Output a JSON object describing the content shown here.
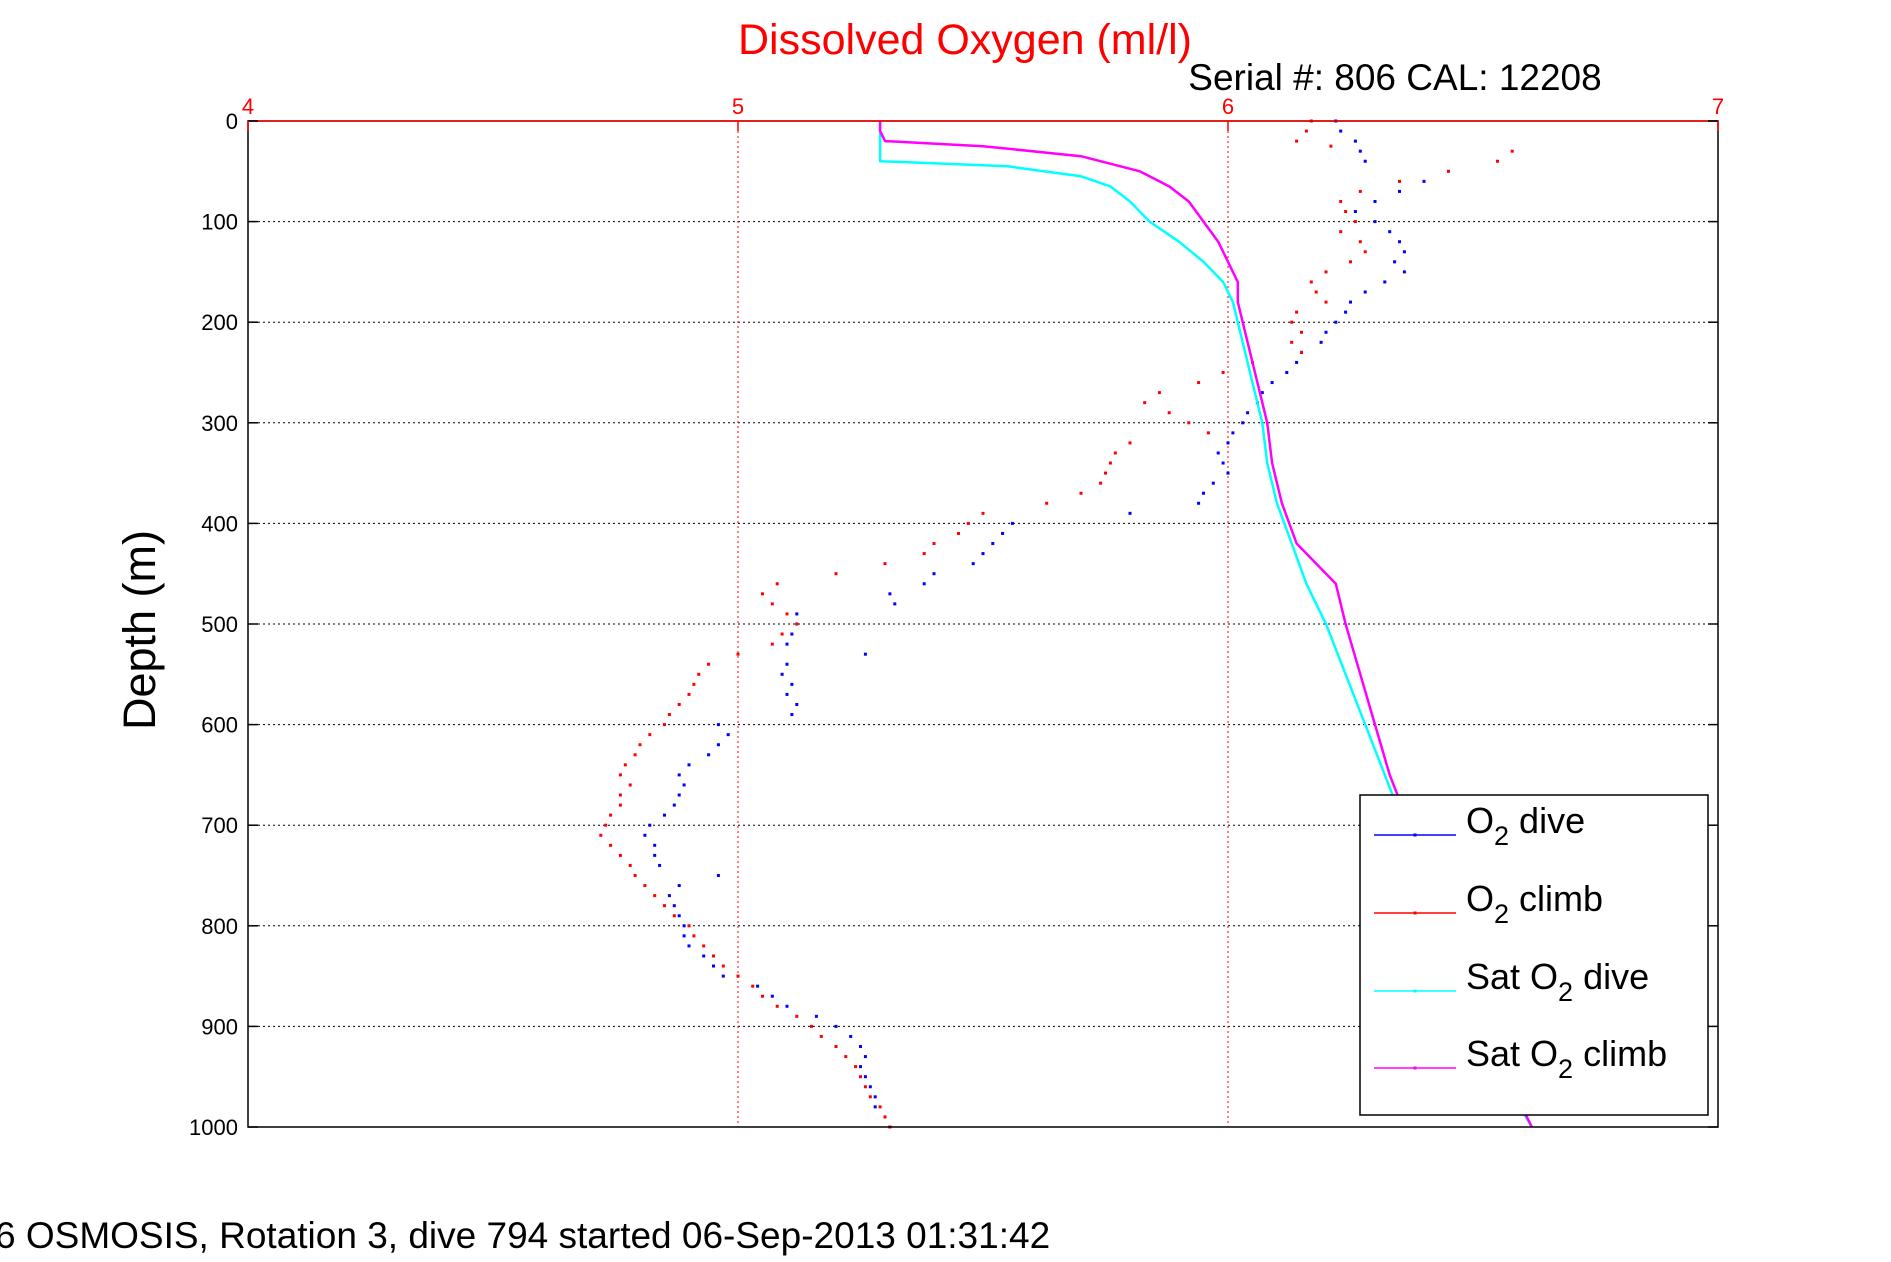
{
  "chart_data": {
    "type": "scatter",
    "title": "Dissolved Oxygen (ml/l)",
    "subtitle": "Serial #: 806  CAL: 12208",
    "footer": "6 OSMOSIS, Rotation 3, dive 794 started 06-Sep-2013 01:31:42",
    "ylabel": "Depth (m)",
    "xlabel": "",
    "xlim": [
      4,
      7
    ],
    "ylim": [
      0,
      1000
    ],
    "y_reversed": true,
    "x_axis_position": "top",
    "xticks": [
      "4",
      "5",
      "6",
      "7"
    ],
    "yticks": [
      "0",
      "100",
      "200",
      "300",
      "400",
      "500",
      "600",
      "700",
      "800",
      "900",
      "1000"
    ],
    "grid": true,
    "legend_position": "bottom-right",
    "colors": {
      "title": "#ff0000",
      "x_ticks": "#ff0000",
      "x_grid": "#ff0000",
      "y_grid": "#000000",
      "frame": "#000000"
    },
    "series": [
      {
        "name": "O2 dive",
        "legend_label": {
          "pre": "O",
          "sub": "2",
          "post": " dive"
        },
        "marker": "dot",
        "color": "#0000ff",
        "points": [
          [
            6.22,
            0
          ],
          [
            6.23,
            10
          ],
          [
            6.26,
            20
          ],
          [
            6.27,
            30
          ],
          [
            6.28,
            40
          ],
          [
            6.4,
            60
          ],
          [
            6.35,
            70
          ],
          [
            6.3,
            80
          ],
          [
            6.26,
            90
          ],
          [
            6.3,
            100
          ],
          [
            6.33,
            110
          ],
          [
            6.35,
            120
          ],
          [
            6.36,
            130
          ],
          [
            6.34,
            140
          ],
          [
            6.36,
            150
          ],
          [
            6.32,
            160
          ],
          [
            6.28,
            170
          ],
          [
            6.25,
            180
          ],
          [
            6.24,
            190
          ],
          [
            6.22,
            200
          ],
          [
            6.2,
            210
          ],
          [
            6.19,
            220
          ],
          [
            6.15,
            230
          ],
          [
            6.14,
            240
          ],
          [
            6.12,
            250
          ],
          [
            6.09,
            260
          ],
          [
            6.07,
            270
          ],
          [
            6.06,
            280
          ],
          [
            6.04,
            290
          ],
          [
            6.03,
            300
          ],
          [
            6.01,
            310
          ],
          [
            6.0,
            320
          ],
          [
            5.98,
            330
          ],
          [
            5.99,
            340
          ],
          [
            6.0,
            350
          ],
          [
            5.97,
            360
          ],
          [
            5.95,
            370
          ],
          [
            5.94,
            380
          ],
          [
            5.8,
            390
          ],
          [
            5.56,
            400
          ],
          [
            5.54,
            410
          ],
          [
            5.52,
            420
          ],
          [
            5.5,
            430
          ],
          [
            5.48,
            440
          ],
          [
            5.4,
            450
          ],
          [
            5.38,
            460
          ],
          [
            5.31,
            470
          ],
          [
            5.32,
            480
          ],
          [
            5.12,
            490
          ],
          [
            5.12,
            500
          ],
          [
            5.11,
            510
          ],
          [
            5.1,
            520
          ],
          [
            5.26,
            530
          ],
          [
            5.1,
            540
          ],
          [
            5.09,
            550
          ],
          [
            5.11,
            560
          ],
          [
            5.1,
            570
          ],
          [
            5.12,
            580
          ],
          [
            5.11,
            590
          ],
          [
            4.96,
            600
          ],
          [
            4.98,
            610
          ],
          [
            4.96,
            620
          ],
          [
            4.94,
            630
          ],
          [
            4.9,
            640
          ],
          [
            4.88,
            650
          ],
          [
            4.89,
            660
          ],
          [
            4.88,
            670
          ],
          [
            4.87,
            680
          ],
          [
            4.85,
            690
          ],
          [
            4.82,
            700
          ],
          [
            4.81,
            710
          ],
          [
            4.83,
            720
          ],
          [
            4.83,
            730
          ],
          [
            4.84,
            740
          ],
          [
            4.96,
            750
          ],
          [
            4.88,
            760
          ],
          [
            4.86,
            770
          ],
          [
            4.87,
            780
          ],
          [
            4.88,
            790
          ],
          [
            4.89,
            800
          ],
          [
            4.89,
            810
          ],
          [
            4.9,
            820
          ],
          [
            4.93,
            830
          ],
          [
            4.95,
            840
          ],
          [
            4.97,
            850
          ],
          [
            5.04,
            860
          ],
          [
            5.07,
            870
          ],
          [
            5.1,
            880
          ],
          [
            5.16,
            890
          ],
          [
            5.2,
            900
          ],
          [
            5.23,
            910
          ],
          [
            5.25,
            920
          ],
          [
            5.26,
            930
          ],
          [
            5.25,
            940
          ],
          [
            5.26,
            950
          ],
          [
            5.27,
            960
          ],
          [
            5.28,
            970
          ],
          [
            5.28,
            980
          ],
          [
            5.3,
            990
          ],
          [
            5.31,
            1000
          ]
        ]
      },
      {
        "name": "O2 climb",
        "legend_label": {
          "pre": "O",
          "sub": "2",
          "post": " climb"
        },
        "marker": "dot",
        "color": "#ff0000",
        "points": [
          [
            6.17,
            0
          ],
          [
            6.16,
            10
          ],
          [
            6.14,
            20
          ],
          [
            6.21,
            25
          ],
          [
            6.58,
            30
          ],
          [
            6.55,
            40
          ],
          [
            6.45,
            50
          ],
          [
            6.35,
            60
          ],
          [
            6.27,
            70
          ],
          [
            6.23,
            80
          ],
          [
            6.24,
            90
          ],
          [
            6.26,
            100
          ],
          [
            6.23,
            110
          ],
          [
            6.27,
            120
          ],
          [
            6.28,
            130
          ],
          [
            6.25,
            140
          ],
          [
            6.2,
            150
          ],
          [
            6.17,
            160
          ],
          [
            6.18,
            170
          ],
          [
            6.2,
            180
          ],
          [
            6.14,
            190
          ],
          [
            6.13,
            200
          ],
          [
            6.15,
            210
          ],
          [
            6.13,
            220
          ],
          [
            6.15,
            230
          ],
          [
            6.05,
            240
          ],
          [
            5.99,
            250
          ],
          [
            5.94,
            260
          ],
          [
            5.86,
            270
          ],
          [
            5.83,
            280
          ],
          [
            5.88,
            290
          ],
          [
            5.92,
            300
          ],
          [
            5.96,
            310
          ],
          [
            5.8,
            320
          ],
          [
            5.77,
            330
          ],
          [
            5.76,
            340
          ],
          [
            5.75,
            350
          ],
          [
            5.74,
            360
          ],
          [
            5.7,
            370
          ],
          [
            5.63,
            380
          ],
          [
            5.5,
            390
          ],
          [
            5.47,
            400
          ],
          [
            5.45,
            410
          ],
          [
            5.4,
            420
          ],
          [
            5.38,
            430
          ],
          [
            5.3,
            440
          ],
          [
            5.2,
            450
          ],
          [
            5.08,
            460
          ],
          [
            5.05,
            470
          ],
          [
            5.07,
            480
          ],
          [
            5.1,
            490
          ],
          [
            5.12,
            500
          ],
          [
            5.09,
            510
          ],
          [
            5.07,
            520
          ],
          [
            5.0,
            530
          ],
          [
            4.94,
            540
          ],
          [
            4.92,
            550
          ],
          [
            4.91,
            560
          ],
          [
            4.9,
            570
          ],
          [
            4.88,
            580
          ],
          [
            4.86,
            590
          ],
          [
            4.85,
            600
          ],
          [
            4.82,
            610
          ],
          [
            4.8,
            620
          ],
          [
            4.79,
            630
          ],
          [
            4.77,
            640
          ],
          [
            4.76,
            650
          ],
          [
            4.78,
            660
          ],
          [
            4.76,
            670
          ],
          [
            4.76,
            680
          ],
          [
            4.74,
            690
          ],
          [
            4.73,
            700
          ],
          [
            4.72,
            710
          ],
          [
            4.74,
            720
          ],
          [
            4.76,
            730
          ],
          [
            4.78,
            740
          ],
          [
            4.79,
            750
          ],
          [
            4.81,
            760
          ],
          [
            4.83,
            770
          ],
          [
            4.85,
            780
          ],
          [
            4.87,
            790
          ],
          [
            4.9,
            800
          ],
          [
            4.91,
            810
          ],
          [
            4.93,
            820
          ],
          [
            4.95,
            830
          ],
          [
            4.97,
            840
          ],
          [
            5.0,
            850
          ],
          [
            5.03,
            860
          ],
          [
            5.05,
            870
          ],
          [
            5.08,
            880
          ],
          [
            5.12,
            890
          ],
          [
            5.15,
            900
          ],
          [
            5.17,
            910
          ],
          [
            5.2,
            920
          ],
          [
            5.22,
            930
          ],
          [
            5.24,
            940
          ],
          [
            5.25,
            950
          ],
          [
            5.26,
            960
          ],
          [
            5.27,
            970
          ],
          [
            5.29,
            980
          ],
          [
            5.3,
            990
          ],
          [
            5.31,
            1000
          ]
        ]
      },
      {
        "name": "Sat O2 dive",
        "legend_label": {
          "pre": "Sat O",
          "sub": "2",
          "post": " dive"
        },
        "marker": "line",
        "color": "#00ffff",
        "points": [
          [
            5.29,
            0
          ],
          [
            5.29,
            10
          ],
          [
            5.29,
            20
          ],
          [
            5.29,
            30
          ],
          [
            5.29,
            40
          ],
          [
            5.55,
            45
          ],
          [
            5.7,
            55
          ],
          [
            5.76,
            65
          ],
          [
            5.8,
            80
          ],
          [
            5.84,
            100
          ],
          [
            5.9,
            120
          ],
          [
            5.95,
            140
          ],
          [
            5.99,
            160
          ],
          [
            6.01,
            180
          ],
          [
            6.02,
            200
          ],
          [
            6.03,
            220
          ],
          [
            6.04,
            240
          ],
          [
            6.05,
            260
          ],
          [
            6.06,
            280
          ],
          [
            6.07,
            300
          ],
          [
            6.08,
            340
          ],
          [
            6.1,
            380
          ],
          [
            6.13,
            420
          ],
          [
            6.16,
            460
          ],
          [
            6.2,
            500
          ],
          [
            6.24,
            550
          ],
          [
            6.28,
            600
          ],
          [
            6.32,
            650
          ],
          [
            6.36,
            700
          ],
          [
            6.4,
            750
          ],
          [
            6.44,
            800
          ],
          [
            6.48,
            850
          ],
          [
            6.52,
            900
          ],
          [
            6.56,
            950
          ],
          [
            6.62,
            1000
          ]
        ]
      },
      {
        "name": "Sat O2 climb",
        "legend_label": {
          "pre": "Sat O",
          "sub": "2",
          "post": " climb"
        },
        "marker": "line",
        "color": "#ff00ff",
        "points": [
          [
            5.29,
            0
          ],
          [
            5.29,
            10
          ],
          [
            5.3,
            20
          ],
          [
            5.5,
            25
          ],
          [
            5.7,
            35
          ],
          [
            5.82,
            50
          ],
          [
            5.88,
            65
          ],
          [
            5.92,
            80
          ],
          [
            5.95,
            100
          ],
          [
            5.98,
            120
          ],
          [
            6.0,
            140
          ],
          [
            6.02,
            160
          ],
          [
            6.02,
            180
          ],
          [
            6.03,
            200
          ],
          [
            6.04,
            220
          ],
          [
            6.05,
            240
          ],
          [
            6.06,
            260
          ],
          [
            6.07,
            280
          ],
          [
            6.08,
            300
          ],
          [
            6.09,
            340
          ],
          [
            6.11,
            380
          ],
          [
            6.14,
            420
          ],
          [
            6.22,
            460
          ],
          [
            6.24,
            500
          ],
          [
            6.27,
            550
          ],
          [
            6.3,
            600
          ],
          [
            6.33,
            650
          ],
          [
            6.37,
            700
          ],
          [
            6.41,
            750
          ],
          [
            6.45,
            800
          ],
          [
            6.49,
            850
          ],
          [
            6.53,
            900
          ],
          [
            6.57,
            950
          ],
          [
            6.62,
            1000
          ]
        ]
      }
    ]
  }
}
